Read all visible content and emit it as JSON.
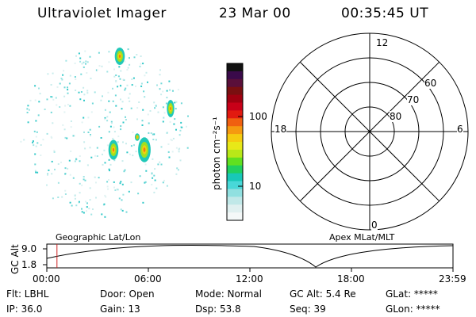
{
  "header": {
    "instrument": "Ultraviolet Imager",
    "date": "23 Mar 00",
    "time": "00:35:45 UT"
  },
  "colorbar": {
    "unit_label": "photon cm⁻²s⁻¹",
    "ticks": [
      "100",
      "10"
    ],
    "colors": [
      "#111111",
      "#3a0a4a",
      "#5a0f3a",
      "#7a0f10",
      "#a00010",
      "#c80018",
      "#e21a10",
      "#f06010",
      "#f59a10",
      "#f5cc10",
      "#e8e818",
      "#b8e818",
      "#60e020",
      "#20d060",
      "#18c8b8",
      "#48d8d8",
      "#90e0e0",
      "#c0e8e8",
      "#e0f0f0",
      "#f4f8f8"
    ]
  },
  "polar_plot": {
    "mlt_labels": {
      "top": "12",
      "left": "18",
      "right": "6",
      "bottom": "0"
    },
    "lat_labels": [
      "60",
      "70",
      "80"
    ]
  },
  "timeline": {
    "left_label": "Geographic Lat/Lon",
    "right_label": "Apex MLat/MLT",
    "axis_title": "GC Alt",
    "y_ticks": [
      "9.0",
      "1.8"
    ],
    "x_ticks": [
      "00:00",
      "06:00",
      "12:00",
      "18:00",
      "23:59"
    ],
    "current_time_fraction": 0.025
  },
  "footer": {
    "flt": "Flt: LBHL",
    "ip": "IP: 36.0",
    "door": "Door: Open",
    "gain": "Gain: 13",
    "mode": "Mode: Normal",
    "dsp": "Dsp:   53.8",
    "gc_alt": "GC Alt: 5.4 Re",
    "seq": "Seq: 39",
    "glat": "GLat: *****",
    "glon": "GLon: *****"
  }
}
